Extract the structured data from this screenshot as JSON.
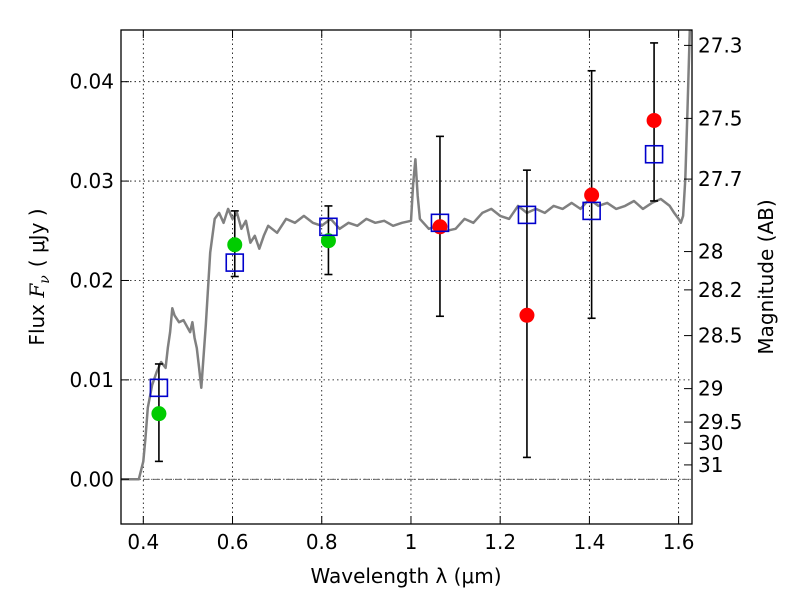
{
  "chart_data": {
    "type": "scatter",
    "title": "",
    "xlabel": "Wavelength  λ (μm)",
    "ylabel": "Flux  F_ν  ( μJy )",
    "ylabel_parts": {
      "prefix": "Flux  ",
      "symbol": "F",
      "subscript": "ν",
      "units": "( μJy )"
    },
    "y2label": "Magnitude (AB)",
    "xlim": [
      0.35,
      1.63
    ],
    "ylim": [
      -0.0045,
      0.0452
    ],
    "grid": true,
    "x_ticks": [
      {
        "value": 0.4,
        "label": "0.4"
      },
      {
        "value": 0.6,
        "label": "0.6"
      },
      {
        "value": 0.8,
        "label": "0.8"
      },
      {
        "value": 1.0,
        "label": "1"
      },
      {
        "value": 1.2,
        "label": "1.2"
      },
      {
        "value": 1.4,
        "label": "1.4"
      },
      {
        "value": 1.6,
        "label": "1.6"
      }
    ],
    "y_ticks": [
      {
        "value": 0.0,
        "label": "0.00"
      },
      {
        "value": 0.01,
        "label": "0.01"
      },
      {
        "value": 0.02,
        "label": "0.02"
      },
      {
        "value": 0.03,
        "label": "0.03"
      },
      {
        "value": 0.04,
        "label": "0.04"
      }
    ],
    "magnitude_ticks": [
      {
        "mag": 27.3,
        "label": "27.3"
      },
      {
        "mag": 27.5,
        "label": "27.5"
      },
      {
        "mag": 27.7,
        "label": "27.7"
      },
      {
        "mag": 28.0,
        "label": "28"
      },
      {
        "mag": 28.2,
        "label": "28.2"
      },
      {
        "mag": 28.5,
        "label": "28.5"
      },
      {
        "mag": 29.0,
        "label": "29"
      },
      {
        "mag": 29.5,
        "label": "29.5"
      },
      {
        "mag": 30.0,
        "label": "30"
      },
      {
        "mag": 31.0,
        "label": "31"
      }
    ],
    "colors": {
      "template": "#808080",
      "model": "#0000cc",
      "optical": "#00cc00",
      "infrared": "#ff0000",
      "errorbar": "#000000",
      "zero_line": "#555555"
    },
    "series": [
      {
        "name": "template spectrum",
        "kind": "line",
        "x": [
          0.35,
          0.38,
          0.39,
          0.4,
          0.405,
          0.41,
          0.42,
          0.43,
          0.44,
          0.45,
          0.455,
          0.46,
          0.465,
          0.47,
          0.48,
          0.49,
          0.5,
          0.505,
          0.51,
          0.515,
          0.52,
          0.525,
          0.53,
          0.54,
          0.55,
          0.56,
          0.57,
          0.58,
          0.59,
          0.6,
          0.61,
          0.62,
          0.63,
          0.64,
          0.65,
          0.66,
          0.67,
          0.68,
          0.7,
          0.72,
          0.74,
          0.76,
          0.78,
          0.8,
          0.82,
          0.84,
          0.86,
          0.88,
          0.9,
          0.92,
          0.94,
          0.96,
          0.98,
          1.0,
          1.005,
          1.01,
          1.015,
          1.02,
          1.04,
          1.06,
          1.08,
          1.1,
          1.12,
          1.14,
          1.16,
          1.18,
          1.2,
          1.22,
          1.24,
          1.26,
          1.28,
          1.3,
          1.32,
          1.34,
          1.36,
          1.38,
          1.4,
          1.42,
          1.44,
          1.46,
          1.48,
          1.5,
          1.52,
          1.54,
          1.56,
          1.58,
          1.59,
          1.6,
          1.605,
          1.61,
          1.615,
          1.62,
          1.625,
          1.63
        ],
        "y": [
          0.0,
          0.0,
          0.0,
          0.0018,
          0.0042,
          0.0072,
          0.0095,
          0.0108,
          0.0118,
          0.0112,
          0.0132,
          0.0148,
          0.0172,
          0.0165,
          0.0158,
          0.016,
          0.0152,
          0.0148,
          0.0158,
          0.0142,
          0.0132,
          0.0112,
          0.0092,
          0.0155,
          0.0228,
          0.0262,
          0.0268,
          0.0258,
          0.0272,
          0.0262,
          0.0268,
          0.0252,
          0.026,
          0.0238,
          0.0245,
          0.0232,
          0.0245,
          0.0255,
          0.0248,
          0.0262,
          0.0258,
          0.0265,
          0.0258,
          0.0255,
          0.0262,
          0.0252,
          0.0258,
          0.0255,
          0.0262,
          0.0258,
          0.026,
          0.0255,
          0.0258,
          0.026,
          0.0298,
          0.0322,
          0.0285,
          0.0262,
          0.0252,
          0.0255,
          0.025,
          0.0252,
          0.0262,
          0.0258,
          0.0268,
          0.0272,
          0.0265,
          0.0262,
          0.0275,
          0.0268,
          0.0272,
          0.0268,
          0.0275,
          0.0272,
          0.0278,
          0.0272,
          0.0282,
          0.0275,
          0.0278,
          0.0272,
          0.0275,
          0.028,
          0.0272,
          0.0278,
          0.0282,
          0.0275,
          0.0268,
          0.0262,
          0.0258,
          0.0265,
          0.0302,
          0.0372,
          0.0452,
          0.0452
        ]
      },
      {
        "name": "model (blue squares)",
        "kind": "square",
        "x": [
          0.435,
          0.605,
          0.815,
          1.065,
          1.26,
          1.405,
          1.545
        ],
        "y": [
          0.0092,
          0.0218,
          0.0254,
          0.0258,
          0.0266,
          0.027,
          0.0327
        ]
      },
      {
        "name": "optical detections (green)",
        "kind": "point",
        "x": [
          0.435,
          0.605,
          0.815
        ],
        "y": [
          0.0066,
          0.0236,
          0.024
        ],
        "yerr_low": [
          0.0018,
          0.0204,
          0.0206
        ],
        "yerr_high": [
          0.0116,
          0.027,
          0.0275
        ]
      },
      {
        "name": "infrared detections (red)",
        "kind": "point",
        "x": [
          1.065,
          1.26,
          1.405,
          1.545
        ],
        "y": [
          0.0254,
          0.0165,
          0.0286,
          0.0361
        ],
        "yerr_low": [
          0.0164,
          0.0022,
          0.0162,
          0.028
        ],
        "yerr_high": [
          0.0345,
          0.0311,
          0.0411,
          0.0439
        ]
      }
    ]
  }
}
